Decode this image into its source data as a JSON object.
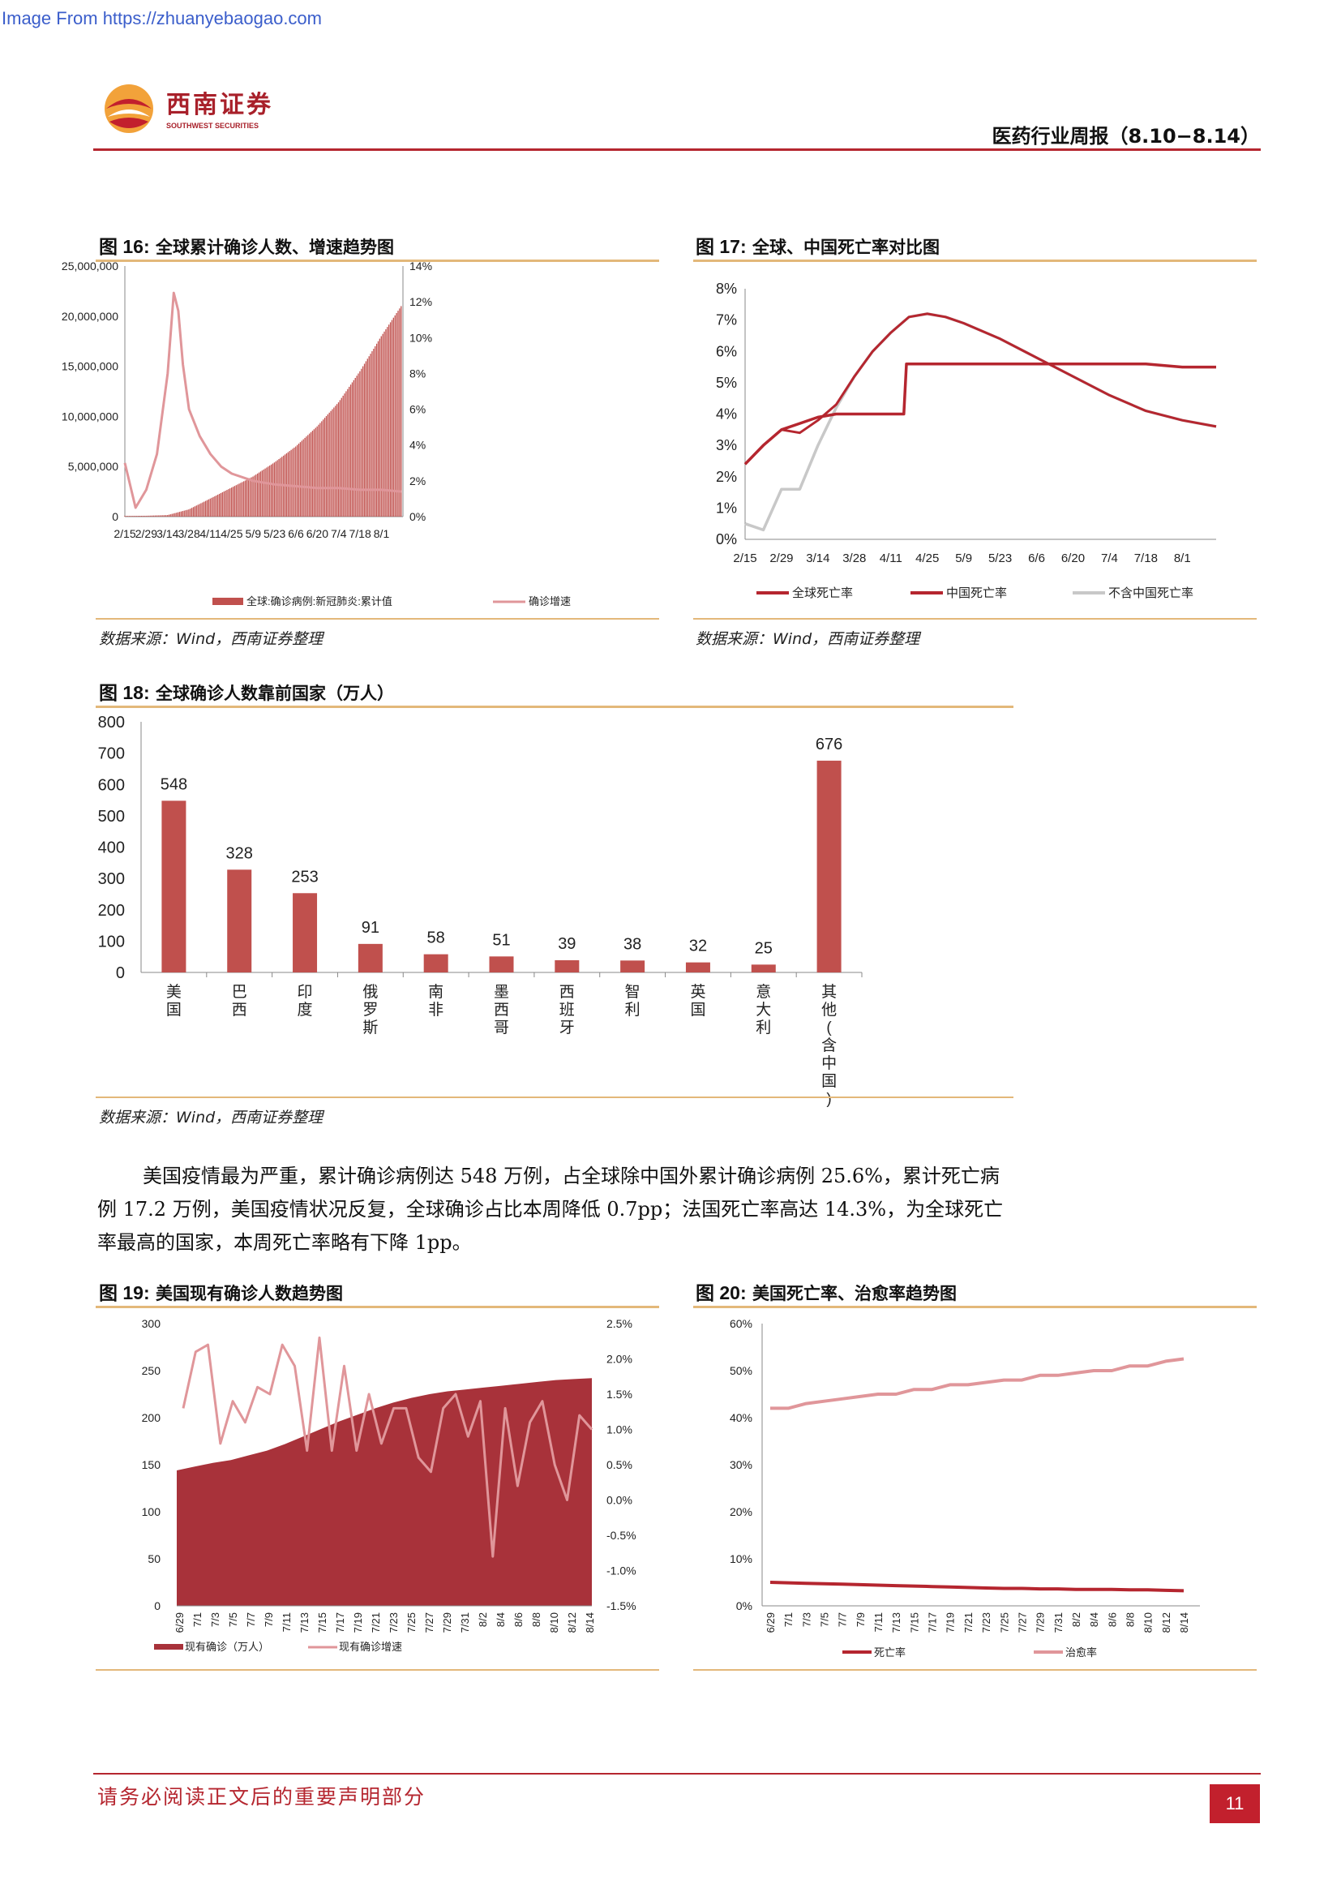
{
  "source_url": "Image From https://zhuanyebaogao.com",
  "brand": {
    "name_cn": "西南证券",
    "name_en": "SOUTHWEST SECURITIES",
    "color": "#a8202a"
  },
  "report_title": "医药行业周报（8.10−8.14）",
  "figures": {
    "f16": {
      "label": "图 16:",
      "title": "全球累计确诊人数、增速趋势图",
      "source": "数据来源：Wind，西南证券整理"
    },
    "f17": {
      "label": "图 17:",
      "title": "全球、中国死亡率对比图",
      "source": "数据来源：Wind，西南证券整理"
    },
    "f18": {
      "label": "图 18:",
      "title": "全球确诊人数靠前国家（万人）",
      "source": "数据来源：Wind，西南证券整理"
    },
    "f19": {
      "label": "图 19:",
      "title": "美国现有确诊人数趋势图"
    },
    "f20": {
      "label": "图 20:",
      "title": "美国死亡率、治愈率趋势图"
    }
  },
  "paragraph": "美国疫情最为严重，累计确诊病例达 548 万例，占全球除中国外累计确诊病例 25.6%，累计死亡病例 17.2 万例，美国疫情状况反复，全球确诊占比本周降低 0.7pp；法国死亡率高达 14.3%，为全球死亡率最高的国家，本周死亡率略有下降 1pp。",
  "footer": {
    "disclaimer": "请务必阅读正文后的重要声明部分",
    "page": "11"
  },
  "colors": {
    "accent": "#b5262f",
    "bar": "#c0504d",
    "light_line": "#e0969a",
    "gray_line": "#c8c8c8",
    "rule": "#e3b87a"
  },
  "chart_data": [
    {
      "id": "fig16",
      "type": "bar+line",
      "x_ticks": [
        "2/15",
        "2/29",
        "3/14",
        "3/28",
        "4/11",
        "4/25",
        "5/9",
        "5/23",
        "6/6",
        "6/20",
        "7/4",
        "7/18",
        "8/1"
      ],
      "y_left_ticks": [
        "25,000,000",
        "20,000,000",
        "15,000,000",
        "10,000,000",
        "5,000,000",
        "0"
      ],
      "y_right_ticks": [
        "14%",
        "12%",
        "10%",
        "8%",
        "6%",
        "4%",
        "2%",
        "0%"
      ],
      "ylim_left": [
        0,
        25000000
      ],
      "ylim_right": [
        0,
        14
      ],
      "series": [
        {
          "name": "全球:确诊病例:新冠肺炎:累计值",
          "type": "bar",
          "x": [
            "2/15",
            "2/29",
            "3/14",
            "3/28",
            "4/11",
            "4/25",
            "5/9",
            "5/23",
            "6/6",
            "6/20",
            "7/4",
            "7/18",
            "8/1",
            "8/14"
          ],
          "values": [
            70000,
            85000,
            150000,
            720000,
            1800000,
            2900000,
            4000000,
            5400000,
            7000000,
            9000000,
            11400000,
            14500000,
            18000000,
            21000000
          ]
        },
        {
          "name": "确诊增速",
          "type": "line",
          "x": [
            "2/15",
            "2/22",
            "2/29",
            "3/7",
            "3/14",
            "3/18",
            "3/21",
            "3/24",
            "3/28",
            "4/4",
            "4/11",
            "4/18",
            "4/25",
            "5/9",
            "5/23",
            "6/6",
            "6/20",
            "7/4",
            "7/18",
            "8/1",
            "8/14"
          ],
          "values": [
            3.0,
            0.5,
            1.5,
            3.5,
            8.0,
            12.5,
            11.5,
            8.5,
            6.0,
            4.5,
            3.5,
            2.8,
            2.4,
            2.0,
            1.8,
            1.7,
            1.6,
            1.6,
            1.5,
            1.5,
            1.4
          ]
        }
      ]
    },
    {
      "id": "fig17",
      "type": "line",
      "x_ticks": [
        "2/15",
        "2/29",
        "3/14",
        "3/28",
        "4/11",
        "4/25",
        "5/9",
        "5/23",
        "6/6",
        "6/20",
        "7/4",
        "7/18",
        "8/1"
      ],
      "y_ticks": [
        "8%",
        "7%",
        "6%",
        "5%",
        "4%",
        "3%",
        "2%",
        "1%",
        "0%"
      ],
      "ylim": [
        0,
        8
      ],
      "series": [
        {
          "name": "全球死亡率",
          "x": [
            "2/15",
            "2/22",
            "2/29",
            "3/7",
            "3/14",
            "3/21",
            "3/28",
            "4/4",
            "4/11",
            "4/18",
            "4/25",
            "5/2",
            "5/9",
            "5/23",
            "6/6",
            "6/20",
            "7/4",
            "7/18",
            "8/1",
            "8/14"
          ],
          "values": [
            2.4,
            3.0,
            3.5,
            3.4,
            3.8,
            4.3,
            5.2,
            6.0,
            6.6,
            7.1,
            7.2,
            7.1,
            6.9,
            6.4,
            5.8,
            5.2,
            4.6,
            4.1,
            3.8,
            3.6
          ]
        },
        {
          "name": "中国死亡率",
          "x": [
            "2/15",
            "2/22",
            "2/29",
            "3/7",
            "3/14",
            "3/21",
            "3/28",
            "4/4",
            "4/11",
            "4/16",
            "4/17",
            "5/2",
            "5/23",
            "6/6",
            "6/20",
            "7/4",
            "7/18",
            "8/1",
            "8/14"
          ],
          "values": [
            2.4,
            3.0,
            3.5,
            3.7,
            3.9,
            4.0,
            4.0,
            4.0,
            4.0,
            4.0,
            5.6,
            5.6,
            5.6,
            5.6,
            5.6,
            5.6,
            5.6,
            5.5,
            5.5
          ]
        },
        {
          "name": "不含中国死亡率",
          "x": [
            "2/15",
            "2/22",
            "2/29",
            "3/7",
            "3/14",
            "3/21",
            "3/28",
            "4/4",
            "4/11",
            "4/18",
            "4/25",
            "5/2",
            "5/9",
            "5/23",
            "6/6",
            "6/20",
            "7/4",
            "7/18",
            "8/1",
            "8/14"
          ],
          "values": [
            0.5,
            0.3,
            1.6,
            1.6,
            3.0,
            4.2,
            5.2,
            6.0,
            6.6,
            7.1,
            7.2,
            7.1,
            6.9,
            6.4,
            5.8,
            5.2,
            4.6,
            4.1,
            3.8,
            3.6
          ]
        }
      ]
    },
    {
      "id": "fig18",
      "type": "bar",
      "categories": [
        "美国",
        "巴西",
        "印度",
        "俄罗斯",
        "南非",
        "墨西哥",
        "西班牙",
        "智利",
        "英国",
        "意大利",
        "其他(含中国)"
      ],
      "values": [
        548,
        328,
        253,
        91,
        58,
        51,
        39,
        38,
        32,
        25,
        676
      ],
      "y_ticks": [
        "800",
        "700",
        "600",
        "500",
        "400",
        "300",
        "200",
        "100",
        "0"
      ],
      "ylim": [
        0,
        800
      ]
    },
    {
      "id": "fig19",
      "type": "area+line",
      "x_ticks": [
        "6/29",
        "7/1",
        "7/3",
        "7/5",
        "7/7",
        "7/9",
        "7/11",
        "7/13",
        "7/15",
        "7/17",
        "7/19",
        "7/21",
        "7/23",
        "7/25",
        "7/27",
        "7/29",
        "7/31",
        "8/2",
        "8/4",
        "8/6",
        "8/8",
        "8/10",
        "8/12",
        "8/14"
      ],
      "y_left_ticks": [
        "300",
        "250",
        "200",
        "150",
        "100",
        "50",
        "0"
      ],
      "y_right_ticks": [
        "2.5%",
        "2.0%",
        "1.5%",
        "1.0%",
        "0.5%",
        "0.0%",
        "-0.5%",
        "-1.0%",
        "-1.5%"
      ],
      "ylim_left": [
        0,
        300
      ],
      "ylim_right": [
        -1.5,
        2.5
      ],
      "series": [
        {
          "name": "现有确诊（万人）",
          "type": "area",
          "values": [
            144,
            148,
            152,
            155,
            160,
            165,
            172,
            180,
            188,
            196,
            203,
            210,
            216,
            221,
            225,
            228,
            230,
            232,
            234,
            236,
            238,
            240,
            241,
            242
          ]
        },
        {
          "name": "现有确诊增速",
          "type": "line",
          "values": [
            1.3,
            2.1,
            2.2,
            0.8,
            1.4,
            1.1,
            1.6,
            1.5,
            2.2,
            1.9,
            0.7,
            2.3,
            0.7,
            1.9,
            0.7,
            1.5,
            0.8,
            1.3,
            1.3,
            0.6,
            0.4,
            1.3,
            1.5,
            0.9,
            1.4,
            -0.8,
            1.3,
            0.2,
            1.1,
            1.4,
            0.5,
            0.0,
            1.2,
            1.0
          ]
        }
      ]
    },
    {
      "id": "fig20",
      "type": "line",
      "x_ticks": [
        "6/29",
        "7/1",
        "7/3",
        "7/5",
        "7/7",
        "7/9",
        "7/11",
        "7/13",
        "7/15",
        "7/17",
        "7/19",
        "7/21",
        "7/23",
        "7/25",
        "7/27",
        "7/29",
        "7/31",
        "8/2",
        "8/4",
        "8/6",
        "8/8",
        "8/10",
        "8/12",
        "8/14"
      ],
      "y_ticks": [
        "60%",
        "50%",
        "40%",
        "30%",
        "20%",
        "10%",
        "0%"
      ],
      "ylim": [
        0,
        60
      ],
      "series": [
        {
          "name": "死亡率",
          "values": [
            5.0,
            4.9,
            4.8,
            4.7,
            4.6,
            4.5,
            4.4,
            4.3,
            4.2,
            4.1,
            4.0,
            3.9,
            3.8,
            3.7,
            3.7,
            3.6,
            3.6,
            3.5,
            3.5,
            3.5,
            3.4,
            3.4,
            3.3,
            3.2
          ]
        },
        {
          "name": "治愈率",
          "values": [
            42,
            42,
            43,
            43.5,
            44,
            44.5,
            45,
            45,
            46,
            46,
            47,
            47,
            47.5,
            48,
            48,
            49,
            49,
            49.5,
            50,
            50,
            51,
            51,
            52,
            52.5
          ]
        }
      ]
    }
  ]
}
